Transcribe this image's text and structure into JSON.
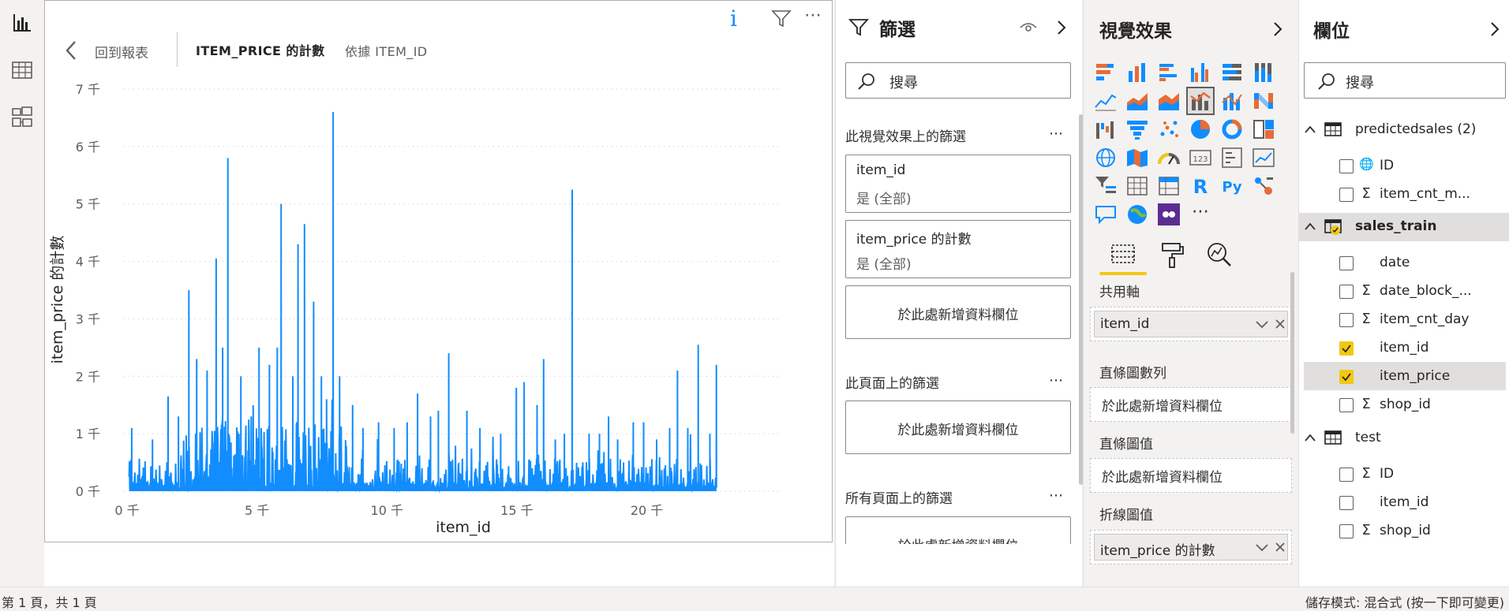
{
  "rail": {
    "items": [
      {
        "name": "report-view-icon",
        "active": true
      },
      {
        "name": "data-view-icon",
        "active": false
      },
      {
        "name": "model-view-icon",
        "active": false
      }
    ]
  },
  "visual": {
    "back_label": "回到報表",
    "crumb_measure": "ITEM_PRICE 的計數",
    "crumb_by": "依據 ITEM_ID",
    "info_glyph": "i",
    "more_glyph": "⋯"
  },
  "chart_data": {
    "type": "line",
    "xlabel": "item_id",
    "ylabel": "item_price 的計數",
    "xlim": [
      0,
      22170
    ],
    "ylim": [
      0,
      7000
    ],
    "x_ticks": [
      {
        "value": 0,
        "label": "0 千"
      },
      {
        "value": 5000,
        "label": "5 千"
      },
      {
        "value": 10000,
        "label": "10 千"
      },
      {
        "value": 15000,
        "label": "15 千"
      },
      {
        "value": 20000,
        "label": "20 千"
      }
    ],
    "y_ticks": [
      {
        "value": 0,
        "label": "0 千"
      },
      {
        "value": 1000,
        "label": "1 千"
      },
      {
        "value": 2000,
        "label": "2 千"
      },
      {
        "value": 3000,
        "label": "3 千"
      },
      {
        "value": 4000,
        "label": "4 千"
      },
      {
        "value": 5000,
        "label": "5 千"
      },
      {
        "value": 6000,
        "label": "6 千"
      },
      {
        "value": 7000,
        "label": "7 千"
      }
    ],
    "grid": true,
    "color": "#118dff",
    "series": [
      {
        "peaks": [
          [
            300,
            1100
          ],
          [
            1100,
            900
          ],
          [
            1700,
            1650
          ],
          [
            2100,
            1300
          ],
          [
            2500,
            3500
          ],
          [
            2800,
            2300
          ],
          [
            3200,
            2100
          ],
          [
            3550,
            4050
          ],
          [
            3800,
            2500
          ],
          [
            4000,
            5800
          ],
          [
            4500,
            2000
          ],
          [
            4900,
            1300
          ],
          [
            5200,
            2500
          ],
          [
            5600,
            2200
          ],
          [
            5900,
            2500
          ],
          [
            6050,
            5000
          ],
          [
            6500,
            2000
          ],
          [
            6700,
            4300
          ],
          [
            6950,
            4650
          ],
          [
            7300,
            3300
          ],
          [
            7600,
            2000
          ],
          [
            7800,
            1600
          ],
          [
            8050,
            6600
          ],
          [
            8300,
            2000
          ],
          [
            8800,
            1500
          ],
          [
            9200,
            1100
          ],
          [
            9800,
            1200
          ],
          [
            10400,
            1100
          ],
          [
            10900,
            1200
          ],
          [
            11300,
            1700
          ],
          [
            11800,
            1300
          ],
          [
            12100,
            1400
          ],
          [
            12500,
            2400
          ],
          [
            13200,
            1400
          ],
          [
            13700,
            1100
          ],
          [
            14500,
            1000
          ],
          [
            15100,
            1800
          ],
          [
            15400,
            1900
          ],
          [
            15900,
            1500
          ],
          [
            16150,
            2300
          ],
          [
            16600,
            900
          ],
          [
            16950,
            1000
          ],
          [
            17250,
            5250
          ],
          [
            17900,
            1000
          ],
          [
            18300,
            1000
          ],
          [
            18650,
            1300
          ],
          [
            19000,
            900
          ],
          [
            19600,
            1200
          ],
          [
            20000,
            1200
          ],
          [
            20500,
            900
          ],
          [
            21000,
            1100
          ],
          [
            21300,
            2100
          ],
          [
            21700,
            1100
          ],
          [
            22100,
            2550
          ],
          [
            22550,
            1000
          ],
          [
            22800,
            2200
          ]
        ]
      }
    ]
  },
  "filters": {
    "title": "篩選",
    "search_placeholder": "搜尋",
    "section_visual": "此視覺效果上的篩選",
    "section_page": "此頁面上的篩選",
    "section_all": "所有頁面上的篩選",
    "more_glyph": "⋯",
    "card_item_id_title": "item_id",
    "card_item_id_sub": "是 (全部)",
    "card_count_title": "item_price 的計數",
    "card_count_sub": "是 (全部)",
    "add_field": "於此處新增資料欄位"
  },
  "viz_pane": {
    "title": "視覺效果",
    "more_glyph": "⋯",
    "r_label": "R",
    "py_label": "Py",
    "shared_axis_label": "共用軸",
    "shared_axis_field": "item_id",
    "column_series_label": "直條圖數列",
    "column_series_placeholder": "於此處新增資料欄位",
    "column_values_label": "直條圖值",
    "column_values_placeholder": "於此處新增資料欄位",
    "line_values_label": "折線圖值",
    "line_values_field": "item_price 的計數"
  },
  "fields_pane": {
    "title": "欄位",
    "search_placeholder": "搜尋",
    "tables": {
      "predictedsales": {
        "name": "predictedsales (2)",
        "fields": [
          {
            "name": "ID",
            "type": "globe",
            "checked": false
          },
          {
            "name": "item_cnt_m...",
            "type": "sigma",
            "checked": false
          }
        ]
      },
      "sales_train": {
        "name": "sales_train",
        "fields": [
          {
            "name": "date",
            "type": "none",
            "checked": false
          },
          {
            "name": "date_block_...",
            "type": "sigma",
            "checked": false
          },
          {
            "name": "item_cnt_day",
            "type": "sigma",
            "checked": false
          },
          {
            "name": "item_id",
            "type": "none",
            "checked": true
          },
          {
            "name": "item_price",
            "type": "none",
            "checked": true
          },
          {
            "name": "shop_id",
            "type": "sigma",
            "checked": false
          }
        ]
      },
      "test": {
        "name": "test",
        "fields": [
          {
            "name": "ID",
            "type": "sigma",
            "checked": false
          },
          {
            "name": "item_id",
            "type": "none",
            "checked": false
          },
          {
            "name": "shop_id",
            "type": "sigma",
            "checked": false
          }
        ]
      }
    },
    "sigma_glyph": "Σ",
    "globe_glyph": "🌐"
  },
  "status": {
    "page_info": "第 1 頁，共 1 頁",
    "storage_mode": "儲存模式: 混合式 (按一下即可變更)"
  }
}
